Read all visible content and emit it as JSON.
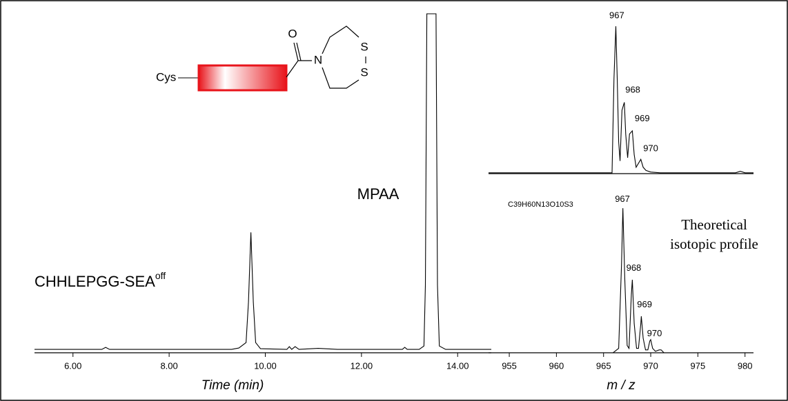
{
  "chart_data": [
    {
      "type": "line",
      "color": "#000000",
      "xlabel": "Time (min)",
      "annotations": [
        {
          "text": "MPAA"
        },
        {
          "text": "CHHLEPGG-SEA",
          "sup": "off"
        }
      ],
      "structure": {
        "prefix": "Cys",
        "atoms": [
          "O",
          "N",
          "S",
          "S"
        ],
        "color": "#e8141b"
      },
      "xlim": [
        5.2,
        14.7
      ],
      "ylim": [
        0,
        100
      ],
      "xticks": [
        {
          "value": 6,
          "label": "6.00"
        },
        {
          "value": 8,
          "label": "8.00"
        },
        {
          "value": 10,
          "label": "10.00"
        },
        {
          "value": 12,
          "label": "12.00"
        },
        {
          "value": 14,
          "label": "14.00"
        }
      ],
      "x": [
        5.2,
        6.6,
        6.68,
        6.76,
        9.3,
        9.45,
        9.6,
        9.65,
        9.7,
        9.75,
        9.8,
        9.9,
        10.45,
        10.5,
        10.55,
        10.62,
        10.7,
        11.1,
        11.5,
        12.85,
        12.9,
        12.95,
        13.2,
        13.3,
        13.33,
        13.36,
        13.55,
        13.58,
        13.62,
        13.75,
        14.7
      ],
      "values": [
        1.0,
        1.0,
        1.6,
        1.0,
        1.0,
        1.4,
        3,
        15,
        35.5,
        15,
        3,
        1.2,
        1.0,
        1.8,
        1.0,
        1.8,
        1.0,
        1.3,
        1.0,
        1.0,
        1.6,
        1.0,
        1.0,
        2,
        20,
        100,
        100,
        20,
        2,
        1.0,
        1.0
      ]
    },
    {
      "type": "line",
      "color": "#000000",
      "xlim": [
        952.8,
        980.9
      ],
      "ylim": [
        0,
        100
      ],
      "x": [
        952.8,
        965.9,
        966.1,
        966.3,
        966.45,
        966.6,
        966.75,
        966.95,
        967.2,
        967.35,
        967.55,
        967.75,
        968.05,
        968.25,
        968.45,
        968.65,
        968.95,
        969.2,
        969.5,
        970,
        971,
        979,
        979.5,
        980,
        980.9
      ],
      "values": [
        0.5,
        0.5,
        60,
        93,
        60,
        20,
        8,
        40,
        45,
        25,
        10,
        25,
        27,
        12,
        4,
        6,
        9,
        4,
        2,
        1,
        0.5,
        0.5,
        1.5,
        0.5,
        0.5
      ],
      "labels": [
        {
          "x": 966.4,
          "y": 97,
          "text": "967"
        },
        {
          "x": 968.1,
          "y": 50,
          "text": "968"
        },
        {
          "x": 969.1,
          "y": 32,
          "text": "969"
        },
        {
          "x": 970.0,
          "y": 13,
          "text": "970"
        }
      ]
    },
    {
      "type": "line",
      "color": "#000000",
      "xlabel": "m / z",
      "formula": "C39H60N13O10S3",
      "formula_color": "#8b1a89",
      "note": [
        "Theoretical",
        "isotopic profile"
      ],
      "xlim": [
        952.8,
        980.9
      ],
      "ylim": [
        0,
        100
      ],
      "xticks": [
        955,
        960,
        965,
        970,
        975,
        980
      ],
      "x": [
        952.8,
        966.0,
        966.6,
        966.9,
        967.05,
        967.25,
        967.5,
        967.7,
        967.95,
        968.05,
        968.25,
        968.5,
        968.7,
        968.95,
        969.0,
        969.2,
        969.45,
        969.7,
        969.9,
        970.0,
        970.2,
        970.5,
        970.9,
        971.1,
        971.4,
        980.9
      ],
      "values": [
        0,
        0,
        3,
        60,
        99,
        50,
        5,
        3,
        40,
        50,
        20,
        3,
        3,
        20,
        25,
        10,
        2,
        2,
        8,
        9,
        3,
        1,
        2,
        2,
        0,
        0
      ],
      "labels": [
        {
          "x": 967.0,
          "y": 102,
          "text": "967"
        },
        {
          "x": 968.2,
          "y": 55,
          "text": "968"
        },
        {
          "x": 969.35,
          "y": 30,
          "text": "969"
        },
        {
          "x": 970.4,
          "y": 10,
          "text": "970"
        }
      ]
    }
  ]
}
